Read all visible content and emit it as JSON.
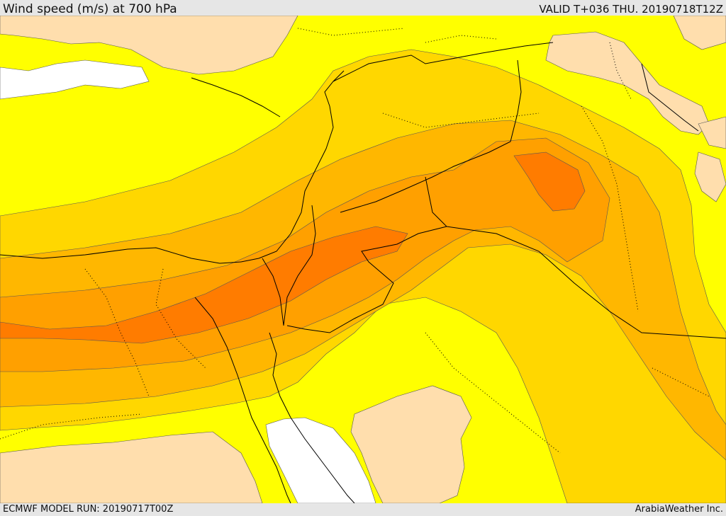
{
  "header": {
    "title": "Wind speed (m/s) at 700 hPa",
    "valid": "VALID T+036 THU. 20190718T12Z"
  },
  "footer": {
    "model_run": "ECMWF MODEL RUN: 20190717T00Z",
    "credit": "ArabiaWeather Inc."
  },
  "colors": {
    "very_light": "#ffdead",
    "light": "#ffff00",
    "moderate": "#ffd700",
    "fresh": "#ffb700",
    "strong": "#ffa000",
    "very_strong": "#ff7c00",
    "water": "#ffffff",
    "border_line": "#000000"
  },
  "map": {
    "field": "wind-speed-700hPa",
    "contour_style": "filled"
  }
}
